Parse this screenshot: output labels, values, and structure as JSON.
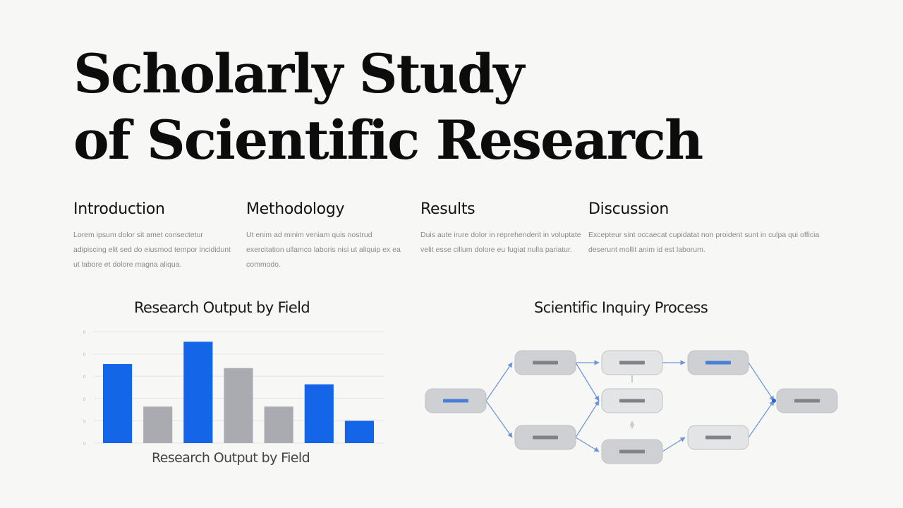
{
  "title": {
    "line1": "Scholarly Study",
    "line2": "of Scientific Research"
  },
  "sections": [
    {
      "heading": "Introduction",
      "body": "Lorem ipsum dolor sit amet consectetur adipiscing elit sed do eiusmod tempor incididunt ut labore et dolore magna aliqua."
    },
    {
      "heading": "Methodology",
      "body": "Ut enim ad minim veniam quis nostrud exercitation ullamco laboris nisi ut aliquip ex ea commodo."
    },
    {
      "heading": "Results",
      "body": "Duis aute irure dolor in reprehenderit in voluptate velit esse cillum dolore eu fugiat nulla pariatur."
    },
    {
      "heading": "Discussion",
      "body": "Excepteur sint occaecat cupidatat non proident sunt in culpa qui officia deserunt mollit anim id est laborum."
    }
  ],
  "chart_data": {
    "type": "bar",
    "title": "Research Output by Field",
    "xlabel": "Research Output by Field",
    "ylabel": "",
    "categories": [
      "",
      "",
      "",
      "",
      "",
      "",
      ""
    ],
    "values": [
      39,
      18,
      50,
      37,
      18,
      29,
      11
    ],
    "bar_colors": [
      "#1565e8",
      "#a9abb0",
      "#1565e8",
      "#a9abb0",
      "#a9abb0",
      "#1565e8",
      "#1565e8"
    ],
    "yticks": [
      "0",
      "0",
      "0",
      "0",
      "0",
      "0"
    ],
    "ylim": [
      0,
      55
    ],
    "grid": true
  },
  "diagram": {
    "title": "Scientific Inquiry Process",
    "node_count": 9,
    "accent_color": "#4a7fd6",
    "neutral_color": "#7f8287",
    "edge_color": "#6d95d8"
  },
  "colors": {
    "accent": "#1565e8",
    "neutral": "#a9abb0",
    "background": "#f7f7f5"
  }
}
